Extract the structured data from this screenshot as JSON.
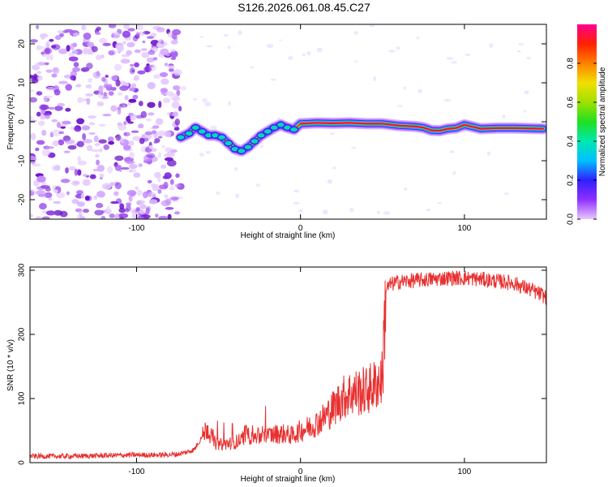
{
  "title": "S126.2026.061.08.45.C27",
  "chart_data": [
    {
      "type": "heatmap",
      "title": "S126.2026.061.08.45.C27",
      "xlabel": "Height of straight line (km)",
      "ylabel": "Frequency (Hz)",
      "xlim": [
        -165,
        150
      ],
      "ylim": [
        -25,
        25
      ],
      "xticks": [
        -100,
        0,
        100
      ],
      "yticks": [
        -20,
        -10,
        0,
        10,
        20
      ],
      "xtick_labels": [
        "-100",
        "0",
        "100"
      ],
      "ytick_labels": [
        "-20",
        "-10",
        "0",
        "10",
        "20"
      ],
      "ridge": {
        "x": [
          -73,
          -68,
          -64,
          -60,
          -56,
          -52,
          -48,
          -44,
          -40,
          -36,
          -32,
          -28,
          -24,
          -20,
          -16,
          -12,
          -8,
          -4,
          0,
          10,
          20,
          30,
          40,
          50,
          60,
          70,
          75,
          80,
          85,
          90,
          95,
          100,
          105,
          110,
          120,
          130,
          140,
          148
        ],
        "y": [
          -4,
          -3,
          -1.5,
          -2.5,
          -3.5,
          -3.5,
          -4,
          -5.5,
          -7,
          -7.5,
          -6.5,
          -5,
          -3.5,
          -2.5,
          -1.5,
          -0.8,
          -1.5,
          -2,
          -0.5,
          -0.3,
          -0.4,
          -0.3,
          -0.5,
          -0.5,
          -1,
          -1.2,
          -1.5,
          -2.2,
          -2.3,
          -1.8,
          -1.6,
          -0.8,
          -1.3,
          -1.8,
          -1.6,
          -1.6,
          -1.7,
          -1.8
        ]
      },
      "colorbar": {
        "label": "Normalized spectral amplitude",
        "range": [
          0,
          1
        ],
        "ticks": [
          0.0,
          0.2,
          0.4,
          0.6,
          0.8
        ],
        "tick_labels": [
          "0.0",
          "0.2",
          "0.4",
          "0.6",
          "0.8"
        ]
      }
    },
    {
      "type": "line",
      "xlabel": "Height of straight line (km)",
      "ylabel": "SNR (10 * v/v)",
      "xlim": [
        -165,
        150
      ],
      "ylim": [
        0,
        305
      ],
      "xticks": [
        -100,
        0,
        100
      ],
      "yticks": [
        0,
        100,
        200,
        300
      ],
      "xtick_labels": [
        "-100",
        "0",
        "100"
      ],
      "ytick_labels": [
        "0",
        "100",
        "200",
        "300"
      ],
      "series": [
        {
          "name": "SNR",
          "color": "#e83030",
          "x": [
            -165,
            -140,
            -120,
            -100,
            -85,
            -75,
            -70,
            -65,
            -60,
            -57,
            -55,
            -52,
            -48,
            -44,
            -40,
            -36,
            -34,
            -30,
            -25,
            -20,
            -15,
            -10,
            -5,
            0,
            5,
            10,
            15,
            20,
            25,
            30,
            35,
            40,
            45,
            50,
            52,
            55,
            60,
            70,
            80,
            90,
            100,
            110,
            120,
            130,
            140,
            150
          ],
          "y": [
            10,
            10,
            11,
            12,
            12,
            13,
            16,
            20,
            40,
            55,
            45,
            30,
            28,
            30,
            32,
            35,
            45,
            42,
            40,
            42,
            45,
            45,
            42,
            50,
            55,
            62,
            72,
            85,
            100,
            108,
            110,
            112,
            120,
            132,
            270,
            278,
            282,
            284,
            286,
            288,
            288,
            286,
            283,
            280,
            270,
            258
          ]
        }
      ]
    }
  ]
}
